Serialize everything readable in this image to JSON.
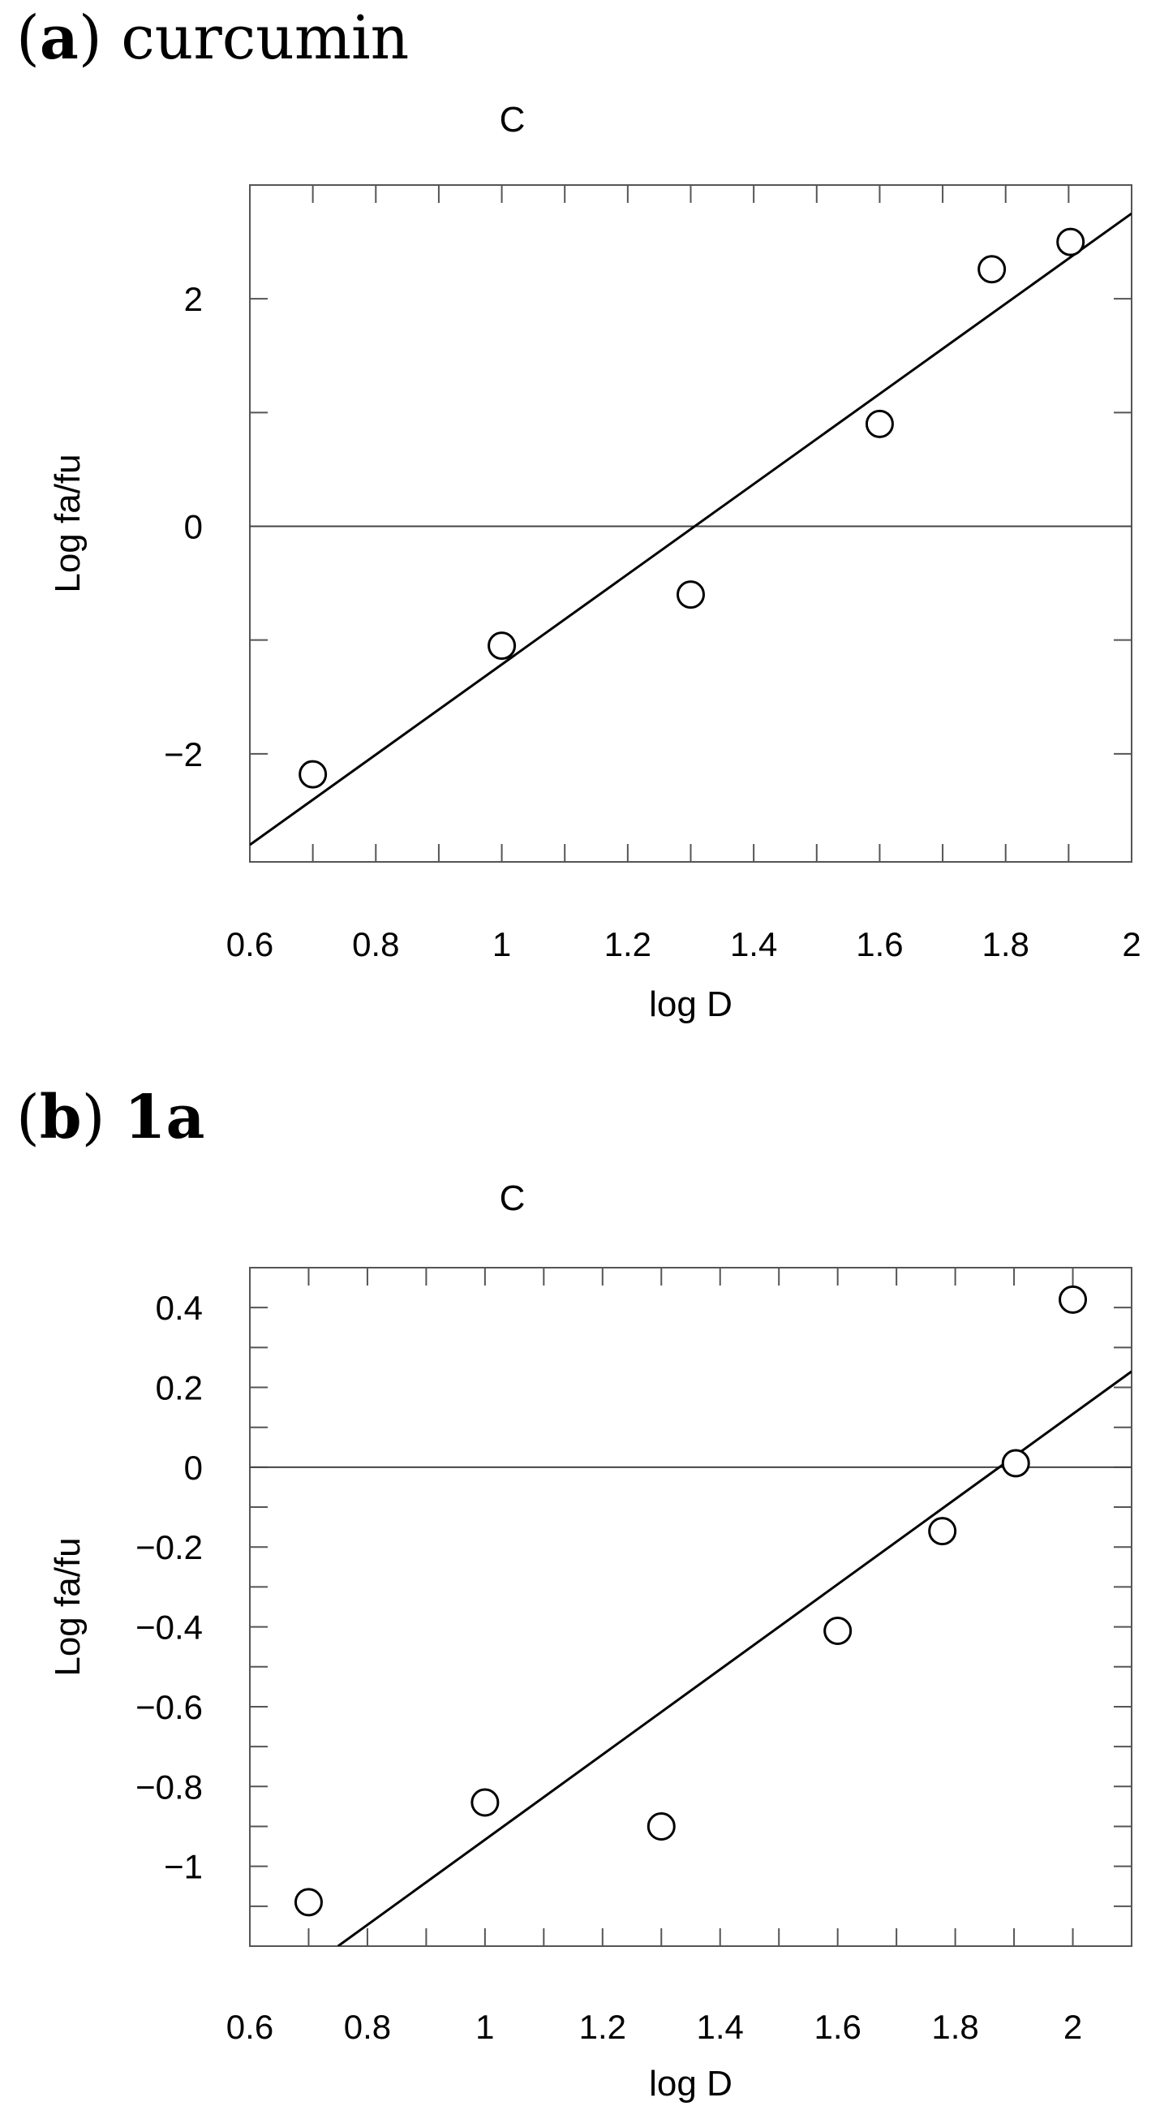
{
  "panels": [
    {
      "letter": "a",
      "name": "curcumin"
    },
    {
      "letter": "b",
      "name": "1a"
    }
  ],
  "chart_data": [
    {
      "type": "scatter",
      "title": "C",
      "xlabel": "log D",
      "ylabel": "Log fa/fu",
      "xlim": [
        0.6,
        2.0
      ],
      "ylim": [
        -2.95,
        3.0
      ],
      "xticks": [
        0.6,
        0.8,
        1.0,
        1.2,
        1.4,
        1.6,
        1.8,
        2.0
      ],
      "xtick_labels": [
        "0.6",
        "0.8",
        "1",
        "1.2",
        "1.4",
        "1.6",
        "1.8",
        "2"
      ],
      "yticks": [
        -2,
        0,
        2
      ],
      "ytick_labels": [
        "−2",
        "0",
        "2"
      ],
      "yminor_ticks": [
        -3,
        -2,
        -1,
        0,
        1,
        2,
        3
      ],
      "xminor_ticks": [
        0.6,
        0.7,
        0.8,
        0.9,
        1.0,
        1.1,
        1.2,
        1.3,
        1.4,
        1.5,
        1.6,
        1.7,
        1.8,
        1.9,
        2.0
      ],
      "points": [
        {
          "x": 0.7,
          "y": -2.18
        },
        {
          "x": 1.0,
          "y": -1.05
        },
        {
          "x": 1.3,
          "y": -0.6
        },
        {
          "x": 1.6,
          "y": 0.9
        },
        {
          "x": 1.778,
          "y": 2.26
        },
        {
          "x": 1.903,
          "y": 2.5
        }
      ],
      "fit_line": {
        "x": [
          0.6,
          2.0
        ],
        "y": [
          -2.8,
          2.75
        ]
      },
      "zero_line": true,
      "grid": false
    },
    {
      "type": "scatter",
      "title": "C",
      "xlabel": "log D",
      "ylabel": "Log fa/fu",
      "xlim": [
        0.6,
        2.1
      ],
      "ylim": [
        -1.2,
        0.5
      ],
      "xticks": [
        0.6,
        0.8,
        1.0,
        1.2,
        1.4,
        1.6,
        1.8,
        2.0
      ],
      "xtick_labels": [
        "0.6",
        "0.8",
        "1",
        "1.2",
        "1.4",
        "1.6",
        "1.8",
        "2"
      ],
      "yticks": [
        -1.0,
        -0.8,
        -0.6,
        -0.4,
        -0.2,
        0.0,
        0.2,
        0.4
      ],
      "ytick_labels": [
        "−1",
        "−0.8",
        "−0.6",
        "−0.4",
        "−0.2",
        "0",
        "0.2",
        "0.4"
      ],
      "yminor_ticks": [
        -1.1,
        -1.0,
        -0.9,
        -0.8,
        -0.7,
        -0.6,
        -0.5,
        -0.4,
        -0.3,
        -0.2,
        -0.1,
        0.0,
        0.1,
        0.2,
        0.3,
        0.4,
        0.5
      ],
      "xminor_ticks": [
        0.6,
        0.7,
        0.8,
        0.9,
        1.0,
        1.1,
        1.2,
        1.3,
        1.4,
        1.5,
        1.6,
        1.7,
        1.8,
        1.9,
        2.0,
        2.1
      ],
      "points": [
        {
          "x": 0.7,
          "y": -1.09
        },
        {
          "x": 1.0,
          "y": -0.84
        },
        {
          "x": 1.3,
          "y": -0.9
        },
        {
          "x": 1.6,
          "y": -0.41
        },
        {
          "x": 1.778,
          "y": -0.16
        },
        {
          "x": 1.903,
          "y": 0.01
        },
        {
          "x": 2.0,
          "y": 0.42
        }
      ],
      "fit_line": {
        "x": [
          0.75,
          2.1
        ],
        "y": [
          -1.2,
          0.24
        ]
      },
      "zero_line": true,
      "grid": false
    }
  ]
}
